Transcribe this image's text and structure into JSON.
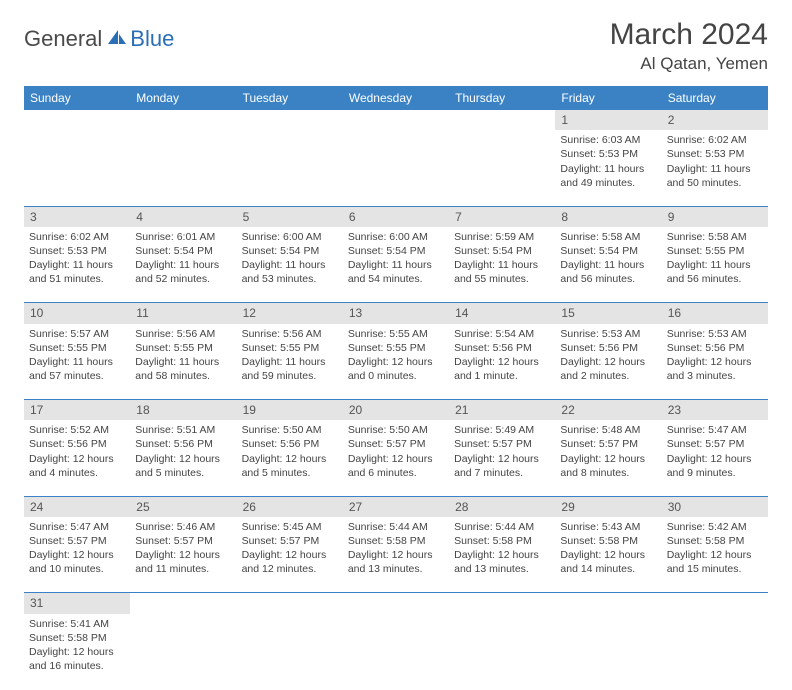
{
  "logo": {
    "text1": "General",
    "text2": "Blue"
  },
  "title": "March 2024",
  "location": "Al Qatan, Yemen",
  "colors": {
    "header_bg": "#3b82c4",
    "header_text": "#ffffff",
    "daynum_bg": "#e4e4e4",
    "row_divider": "#3b82c4",
    "body_text": "#444444",
    "logo_blue": "#2a6fb5"
  },
  "daysOfWeek": [
    "Sunday",
    "Monday",
    "Tuesday",
    "Wednesday",
    "Thursday",
    "Friday",
    "Saturday"
  ],
  "weeks": [
    [
      null,
      null,
      null,
      null,
      null,
      {
        "n": "1",
        "sr": "Sunrise: 6:03 AM",
        "ss": "Sunset: 5:53 PM",
        "dl": "Daylight: 11 hours and 49 minutes."
      },
      {
        "n": "2",
        "sr": "Sunrise: 6:02 AM",
        "ss": "Sunset: 5:53 PM",
        "dl": "Daylight: 11 hours and 50 minutes."
      }
    ],
    [
      {
        "n": "3",
        "sr": "Sunrise: 6:02 AM",
        "ss": "Sunset: 5:53 PM",
        "dl": "Daylight: 11 hours and 51 minutes."
      },
      {
        "n": "4",
        "sr": "Sunrise: 6:01 AM",
        "ss": "Sunset: 5:54 PM",
        "dl": "Daylight: 11 hours and 52 minutes."
      },
      {
        "n": "5",
        "sr": "Sunrise: 6:00 AM",
        "ss": "Sunset: 5:54 PM",
        "dl": "Daylight: 11 hours and 53 minutes."
      },
      {
        "n": "6",
        "sr": "Sunrise: 6:00 AM",
        "ss": "Sunset: 5:54 PM",
        "dl": "Daylight: 11 hours and 54 minutes."
      },
      {
        "n": "7",
        "sr": "Sunrise: 5:59 AM",
        "ss": "Sunset: 5:54 PM",
        "dl": "Daylight: 11 hours and 55 minutes."
      },
      {
        "n": "8",
        "sr": "Sunrise: 5:58 AM",
        "ss": "Sunset: 5:54 PM",
        "dl": "Daylight: 11 hours and 56 minutes."
      },
      {
        "n": "9",
        "sr": "Sunrise: 5:58 AM",
        "ss": "Sunset: 5:55 PM",
        "dl": "Daylight: 11 hours and 56 minutes."
      }
    ],
    [
      {
        "n": "10",
        "sr": "Sunrise: 5:57 AM",
        "ss": "Sunset: 5:55 PM",
        "dl": "Daylight: 11 hours and 57 minutes."
      },
      {
        "n": "11",
        "sr": "Sunrise: 5:56 AM",
        "ss": "Sunset: 5:55 PM",
        "dl": "Daylight: 11 hours and 58 minutes."
      },
      {
        "n": "12",
        "sr": "Sunrise: 5:56 AM",
        "ss": "Sunset: 5:55 PM",
        "dl": "Daylight: 11 hours and 59 minutes."
      },
      {
        "n": "13",
        "sr": "Sunrise: 5:55 AM",
        "ss": "Sunset: 5:55 PM",
        "dl": "Daylight: 12 hours and 0 minutes."
      },
      {
        "n": "14",
        "sr": "Sunrise: 5:54 AM",
        "ss": "Sunset: 5:56 PM",
        "dl": "Daylight: 12 hours and 1 minute."
      },
      {
        "n": "15",
        "sr": "Sunrise: 5:53 AM",
        "ss": "Sunset: 5:56 PM",
        "dl": "Daylight: 12 hours and 2 minutes."
      },
      {
        "n": "16",
        "sr": "Sunrise: 5:53 AM",
        "ss": "Sunset: 5:56 PM",
        "dl": "Daylight: 12 hours and 3 minutes."
      }
    ],
    [
      {
        "n": "17",
        "sr": "Sunrise: 5:52 AM",
        "ss": "Sunset: 5:56 PM",
        "dl": "Daylight: 12 hours and 4 minutes."
      },
      {
        "n": "18",
        "sr": "Sunrise: 5:51 AM",
        "ss": "Sunset: 5:56 PM",
        "dl": "Daylight: 12 hours and 5 minutes."
      },
      {
        "n": "19",
        "sr": "Sunrise: 5:50 AM",
        "ss": "Sunset: 5:56 PM",
        "dl": "Daylight: 12 hours and 5 minutes."
      },
      {
        "n": "20",
        "sr": "Sunrise: 5:50 AM",
        "ss": "Sunset: 5:57 PM",
        "dl": "Daylight: 12 hours and 6 minutes."
      },
      {
        "n": "21",
        "sr": "Sunrise: 5:49 AM",
        "ss": "Sunset: 5:57 PM",
        "dl": "Daylight: 12 hours and 7 minutes."
      },
      {
        "n": "22",
        "sr": "Sunrise: 5:48 AM",
        "ss": "Sunset: 5:57 PM",
        "dl": "Daylight: 12 hours and 8 minutes."
      },
      {
        "n": "23",
        "sr": "Sunrise: 5:47 AM",
        "ss": "Sunset: 5:57 PM",
        "dl": "Daylight: 12 hours and 9 minutes."
      }
    ],
    [
      {
        "n": "24",
        "sr": "Sunrise: 5:47 AM",
        "ss": "Sunset: 5:57 PM",
        "dl": "Daylight: 12 hours and 10 minutes."
      },
      {
        "n": "25",
        "sr": "Sunrise: 5:46 AM",
        "ss": "Sunset: 5:57 PM",
        "dl": "Daylight: 12 hours and 11 minutes."
      },
      {
        "n": "26",
        "sr": "Sunrise: 5:45 AM",
        "ss": "Sunset: 5:57 PM",
        "dl": "Daylight: 12 hours and 12 minutes."
      },
      {
        "n": "27",
        "sr": "Sunrise: 5:44 AM",
        "ss": "Sunset: 5:58 PM",
        "dl": "Daylight: 12 hours and 13 minutes."
      },
      {
        "n": "28",
        "sr": "Sunrise: 5:44 AM",
        "ss": "Sunset: 5:58 PM",
        "dl": "Daylight: 12 hours and 13 minutes."
      },
      {
        "n": "29",
        "sr": "Sunrise: 5:43 AM",
        "ss": "Sunset: 5:58 PM",
        "dl": "Daylight: 12 hours and 14 minutes."
      },
      {
        "n": "30",
        "sr": "Sunrise: 5:42 AM",
        "ss": "Sunset: 5:58 PM",
        "dl": "Daylight: 12 hours and 15 minutes."
      }
    ],
    [
      {
        "n": "31",
        "sr": "Sunrise: 5:41 AM",
        "ss": "Sunset: 5:58 PM",
        "dl": "Daylight: 12 hours and 16 minutes."
      },
      null,
      null,
      null,
      null,
      null,
      null
    ]
  ]
}
